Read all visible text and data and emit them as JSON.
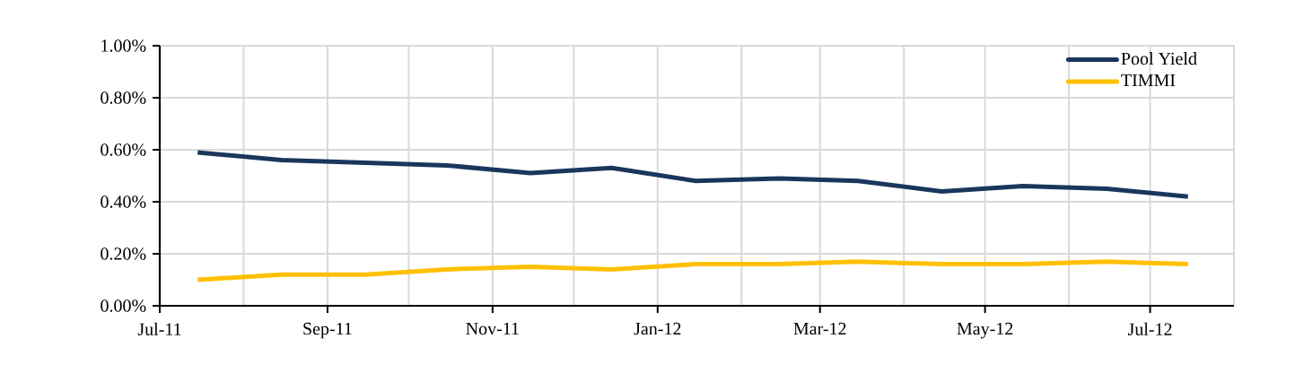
{
  "chart_data": {
    "type": "line",
    "x": [
      "2011-07-15",
      "2011-08-15",
      "2011-09-15",
      "2011-10-15",
      "2011-11-15",
      "2011-12-15",
      "2012-01-15",
      "2012-02-15",
      "2012-03-15",
      "2012-04-15",
      "2012-05-15",
      "2012-06-15",
      "2012-07-15"
    ],
    "series": [
      {
        "name": "Pool Yield",
        "color": "#1b365d",
        "values": [
          0.59,
          0.56,
          0.55,
          0.54,
          0.51,
          0.53,
          0.48,
          0.49,
          0.48,
          0.44,
          0.46,
          0.45,
          0.42
        ]
      },
      {
        "name": "TIMMI",
        "color": "#ffc000",
        "values": [
          0.1,
          0.12,
          0.12,
          0.14,
          0.15,
          0.14,
          0.16,
          0.16,
          0.17,
          0.16,
          0.16,
          0.17,
          0.16
        ]
      }
    ],
    "xlim": [
      "2011-07-01",
      "2012-08-01"
    ],
    "xticks": [
      {
        "value": "2011-07-01",
        "label": "Jul-11"
      },
      {
        "value": "2011-08-01",
        "label": null
      },
      {
        "value": "2011-09-01",
        "label": "Sep-11"
      },
      {
        "value": "2011-10-01",
        "label": null
      },
      {
        "value": "2011-11-01",
        "label": "Nov-11"
      },
      {
        "value": "2011-12-01",
        "label": null
      },
      {
        "value": "2012-01-01",
        "label": "Jan-12"
      },
      {
        "value": "2012-02-01",
        "label": null
      },
      {
        "value": "2012-03-01",
        "label": "Mar-12"
      },
      {
        "value": "2012-04-01",
        "label": null
      },
      {
        "value": "2012-05-01",
        "label": "May-12"
      },
      {
        "value": "2012-06-01",
        "label": null
      },
      {
        "value": "2012-07-01",
        "label": "Jul-12"
      },
      {
        "value": "2012-08-01",
        "label": null
      }
    ],
    "ylim": [
      0,
      1
    ],
    "yticks": [
      {
        "value": 0,
        "label": "0.00%"
      },
      {
        "value": 0.2,
        "label": "0.20%"
      },
      {
        "value": 0.4,
        "label": "0.40%"
      },
      {
        "value": 0.6,
        "label": "0.60%"
      },
      {
        "value": 0.8,
        "label": "0.80%"
      },
      {
        "value": 1,
        "label": "1.00%"
      }
    ],
    "grid": true,
    "legend": "top right",
    "marker": "none",
    "line_style": "solid"
  }
}
